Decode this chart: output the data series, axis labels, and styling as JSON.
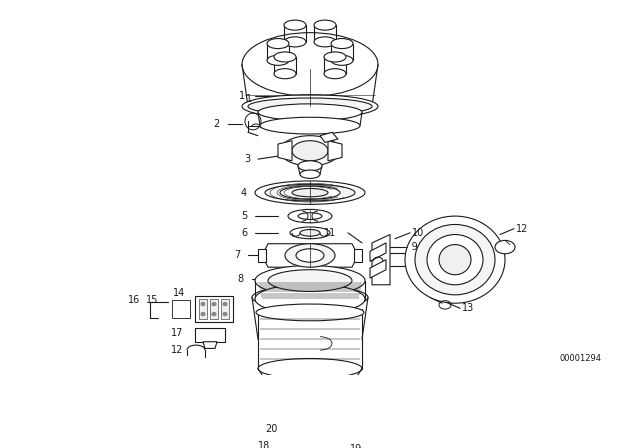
{
  "bg_color": "#ffffff",
  "line_color": "#1a1a1a",
  "label_color": "#1a1a1a",
  "watermark": "00001294",
  "fig_w": 6.4,
  "fig_h": 4.48,
  "dpi": 100
}
